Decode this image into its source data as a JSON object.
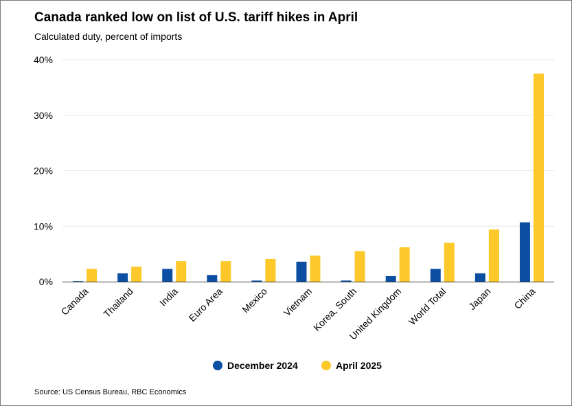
{
  "title": "Canada ranked low on list of U.S. tariff hikes in April",
  "subtitle": "Calculated duty, percent of imports",
  "source": "Source: US Census Bureau, RBC Economics",
  "colors": {
    "series_1": "#0b4ea2",
    "series_2": "#fcc82a",
    "grid": "#e6e6e6",
    "axis": "#333333"
  },
  "chart_data": {
    "type": "bar",
    "categories": [
      "Canada",
      "Thailand",
      "India",
      "Euro Area",
      "Mexico",
      "Vietnam",
      "Korea, South",
      "United Kingdom",
      "World Total",
      "Japan",
      "China"
    ],
    "series": [
      {
        "name": "December 2024",
        "values": [
          0.1,
          1.5,
          2.3,
          1.2,
          0.2,
          3.6,
          0.2,
          1.0,
          2.3,
          1.5,
          10.7
        ]
      },
      {
        "name": "April 2025",
        "values": [
          2.3,
          2.7,
          3.7,
          3.7,
          4.1,
          4.7,
          5.5,
          6.2,
          7.0,
          9.4,
          37.5
        ]
      }
    ],
    "ylim": [
      0,
      40
    ],
    "yticks": [
      0,
      10,
      20,
      30,
      40
    ],
    "ytick_labels": [
      "0%",
      "10%",
      "20%",
      "30%",
      "40%"
    ],
    "grid": true,
    "legend_position": "bottom"
  }
}
